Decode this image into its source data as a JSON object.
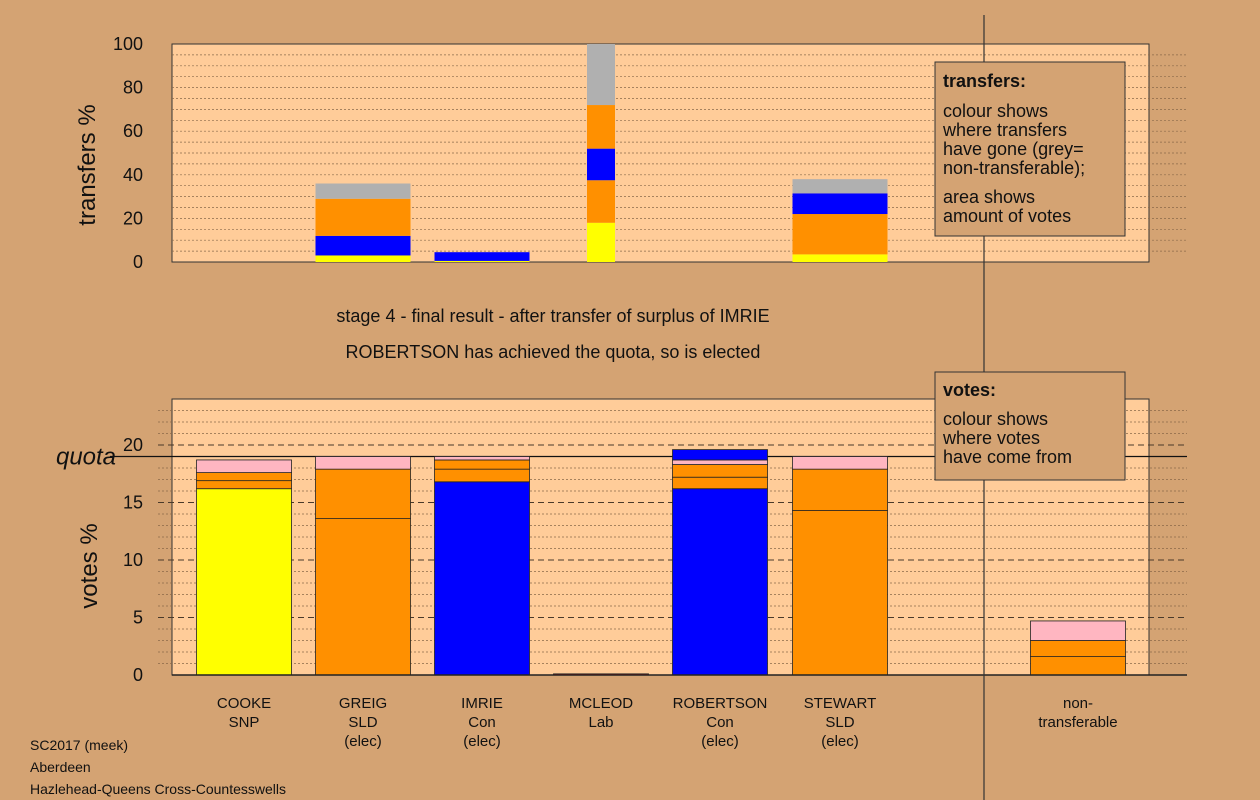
{
  "footer": [
    "SC2017 (meek)",
    "Aberdeen",
    "Hazlehead-Queens Cross-Countesswells"
  ],
  "stage_text": "stage 4 - final result - after transfer of surplus of IMRIE",
  "elected_text": "ROBERTSON has achieved the quota, so is elected",
  "colors": {
    "SNP": "#ffff00",
    "SLD": "#ff9000",
    "Con": "#0000ff",
    "Lab": "#ff0000",
    "other": "#ffb6c1",
    "nontransferable": "#b0b0b0"
  },
  "transfers_box": {
    "title": "transfers:",
    "lines": [
      "colour shows",
      "where transfers",
      "have gone (grey=",
      "non-transferable);"
    ],
    "lines2": [
      "area shows",
      "amount of votes"
    ]
  },
  "votes_box": {
    "title": "votes:",
    "lines": [
      "colour shows",
      "where votes",
      "have come from"
    ]
  },
  "chart_data": [
    {
      "type": "bar",
      "ylabel": "transfers %",
      "ylim": [
        0,
        100
      ],
      "yticks": [
        "0",
        "20",
        "40",
        "60",
        "80",
        "100"
      ],
      "bars": [
        {
          "slot": 1,
          "segments": [
            {
              "value": 3,
              "color": "#ffff00"
            },
            {
              "value": 9,
              "color": "#0000ff"
            },
            {
              "value": 17,
              "color": "#ff9000"
            },
            {
              "value": 7,
              "color": "#b0b0b0"
            }
          ]
        },
        {
          "slot": 2,
          "segments": [
            {
              "value": 0.5,
              "color": "#ffff00"
            },
            {
              "value": 4,
              "color": "#0000ff"
            }
          ]
        },
        {
          "slot": 3,
          "narrow": true,
          "segments": [
            {
              "value": 18,
              "color": "#ffff00"
            },
            {
              "value": 19.5,
              "color": "#ff9000"
            },
            {
              "value": 14.5,
              "color": "#0000ff"
            },
            {
              "value": 20,
              "color": "#ff9000"
            },
            {
              "value": 28,
              "color": "#b0b0b0"
            }
          ]
        },
        {
          "slot": 5,
          "segments": [
            {
              "value": 3.5,
              "color": "#ffff00"
            },
            {
              "value": 18.5,
              "color": "#ff9000"
            },
            {
              "value": 9.5,
              "color": "#0000ff"
            },
            {
              "value": 6.5,
              "color": "#b0b0b0"
            }
          ]
        }
      ]
    },
    {
      "type": "bar",
      "ylabel": "votes %",
      "ylim": [
        0,
        24
      ],
      "yticks": [
        "0",
        "5",
        "10",
        "15",
        "20"
      ],
      "quota": 19.0,
      "quota_label": "quota",
      "categories": [
        {
          "lines": [
            "COOKE",
            "SNP"
          ]
        },
        {
          "lines": [
            "GREIG",
            "SLD",
            "(elec)"
          ]
        },
        {
          "lines": [
            "IMRIE",
            "Con",
            "(elec)"
          ]
        },
        {
          "lines": [
            "MCLEOD",
            "Lab"
          ]
        },
        {
          "lines": [
            "ROBERTSON",
            "Con",
            "(elec)"
          ]
        },
        {
          "lines": [
            "STEWART",
            "SLD",
            "(elec)"
          ]
        },
        {
          "lines": [
            "non-",
            "transferable"
          ]
        }
      ],
      "bars": [
        {
          "slot": 0,
          "segments": [
            {
              "value": 16.2,
              "color": "#ffff00"
            },
            {
              "value": 0.7,
              "color": "#ff9000"
            },
            {
              "value": 0.7,
              "color": "#ff9000"
            },
            {
              "value": 1.1,
              "color": "#ffb6c1"
            }
          ]
        },
        {
          "slot": 1,
          "segments": [
            {
              "value": 13.6,
              "color": "#ff9000"
            },
            {
              "value": 4.3,
              "color": "#ff9000"
            },
            {
              "value": 1.1,
              "color": "#ffb6c1"
            }
          ]
        },
        {
          "slot": 2,
          "segments": [
            {
              "value": 16.8,
              "color": "#0000ff"
            },
            {
              "value": 1.1,
              "color": "#ff9000"
            },
            {
              "value": 0.8,
              "color": "#ff9000"
            },
            {
              "value": 0.3,
              "color": "#ffb6c1"
            }
          ]
        },
        {
          "slot": 3,
          "segments": [
            {
              "value": 0.1,
              "color": "#ff0000"
            }
          ]
        },
        {
          "slot": 4,
          "segments": [
            {
              "value": 16.2,
              "color": "#0000ff"
            },
            {
              "value": 1.0,
              "color": "#ff9000"
            },
            {
              "value": 1.1,
              "color": "#ff9000"
            },
            {
              "value": 0.4,
              "color": "#ffb6c1"
            },
            {
              "value": 0.9,
              "color": "#0000ff"
            }
          ]
        },
        {
          "slot": 5,
          "segments": [
            {
              "value": 14.3,
              "color": "#ff9000"
            },
            {
              "value": 3.6,
              "color": "#ff9000"
            },
            {
              "value": 1.1,
              "color": "#ffb6c1"
            }
          ]
        },
        {
          "slot": 6,
          "segments": [
            {
              "value": 1.6,
              "color": "#ff9000"
            },
            {
              "value": 1.4,
              "color": "#ff9000"
            },
            {
              "value": 1.7,
              "color": "#ffb6c1"
            }
          ]
        }
      ]
    }
  ]
}
